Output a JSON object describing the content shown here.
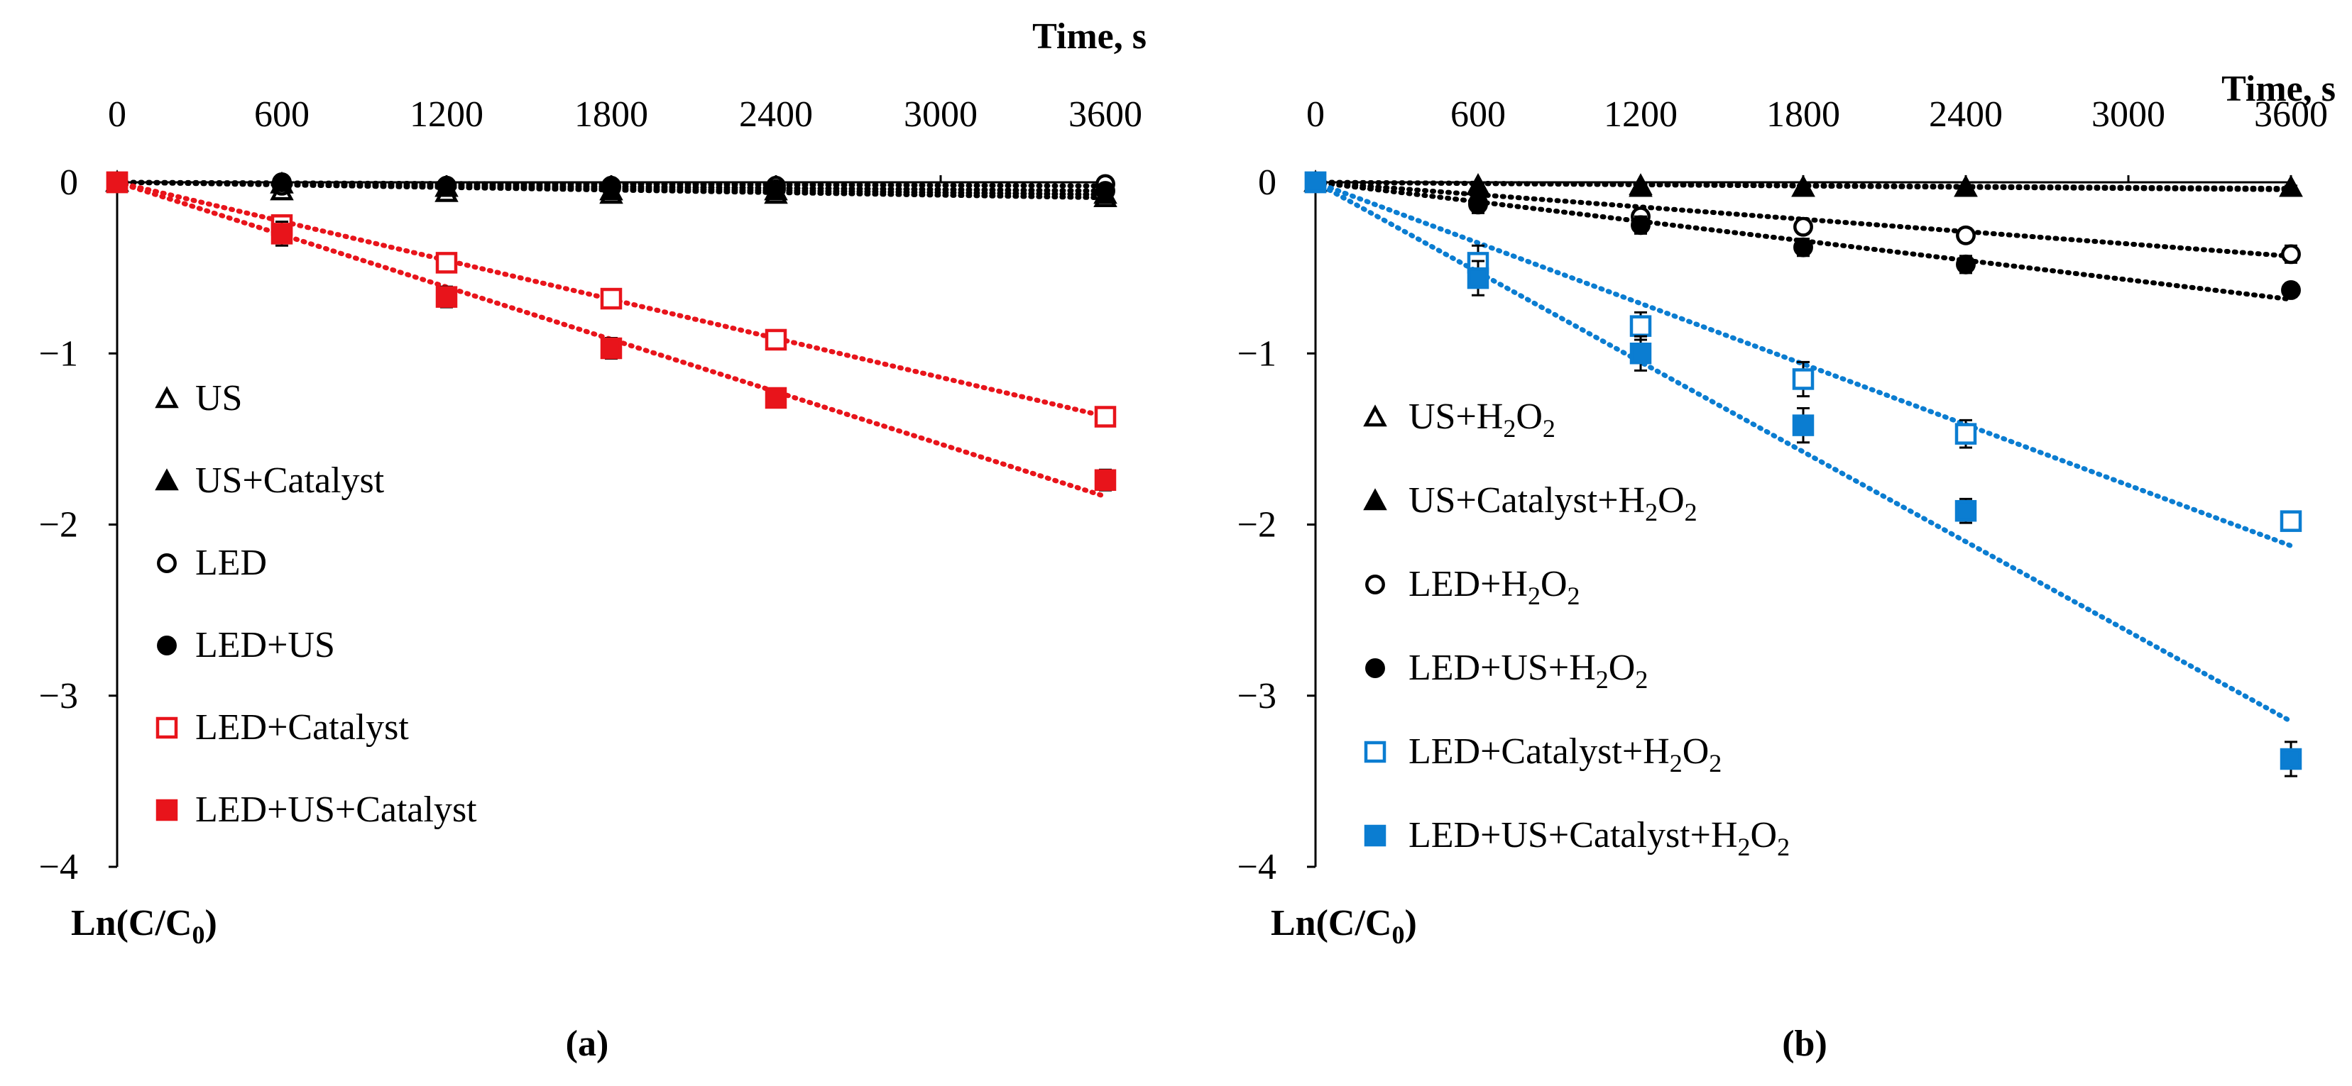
{
  "figure": {
    "panels": [
      "(a)",
      "(b)"
    ]
  },
  "chart_data": [
    {
      "type": "scatter",
      "panel_label": "(a)",
      "x_axis_title": "Time, s",
      "y_axis_title": "Ln(C/C",
      "y_axis_title_sub": "0",
      "y_axis_title_end": ")",
      "xlim": [
        0,
        3600
      ],
      "ylim": [
        -4,
        0
      ],
      "x_ticks": [
        0,
        600,
        1200,
        1800,
        2400,
        3000,
        3600
      ],
      "x_tick_labels": [
        "0",
        "600",
        "1200",
        "1800",
        "2400",
        "3000",
        "3600"
      ],
      "y_ticks": [
        0,
        -1,
        -2,
        -3,
        -4
      ],
      "y_tick_labels": [
        "0",
        "−1",
        "−2",
        "−3",
        "−4"
      ],
      "x_axis_position": "top",
      "legend_position": "lower-left",
      "series": [
        {
          "name": "US",
          "label": [
            {
              "t": "US"
            }
          ],
          "marker": "triangle-open",
          "color": "#000000",
          "x": [
            0,
            600,
            1200,
            1800,
            2400,
            3600
          ],
          "y": [
            0,
            -0.05,
            -0.06,
            -0.07,
            -0.07,
            -0.09
          ],
          "err": [
            0.02,
            0.03,
            0.02,
            0.02,
            0.02,
            0.03
          ],
          "trend": [
            0,
            -2.5e-05
          ]
        },
        {
          "name": "US+Catalyst",
          "label": [
            {
              "t": "US+Catalyst"
            }
          ],
          "marker": "triangle-filled",
          "color": "#000000",
          "x": [
            0,
            600,
            1200,
            1800,
            2400,
            3600
          ],
          "y": [
            0,
            -0.01,
            -0.03,
            -0.05,
            -0.05,
            -0.07
          ],
          "err": [
            0.01,
            0.02,
            0.02,
            0.02,
            0.02,
            0.02
          ],
          "trend": [
            0,
            -2e-05
          ]
        },
        {
          "name": "LED",
          "label": [
            {
              "t": "LED"
            }
          ],
          "marker": "circle-open",
          "color": "#000000",
          "x": [
            0,
            600,
            1200,
            1800,
            2400,
            3600
          ],
          "y": [
            0,
            -0.02,
            -0.02,
            -0.02,
            -0.02,
            -0.01
          ],
          "err": [
            0.01,
            0.01,
            0.01,
            0.01,
            0.01,
            0.01
          ],
          "trend": [
            0,
            -6e-06
          ]
        },
        {
          "name": "LED+US",
          "label": [
            {
              "t": "LED+US"
            }
          ],
          "marker": "circle-filled",
          "color": "#000000",
          "x": [
            0,
            600,
            1200,
            1800,
            2400,
            3600
          ],
          "y": [
            0,
            0.0,
            -0.02,
            -0.03,
            -0.04,
            -0.05
          ],
          "err": [
            0.01,
            0.01,
            0.01,
            0.01,
            0.01,
            0.01
          ],
          "trend": [
            0,
            -1.4e-05
          ]
        },
        {
          "name": "LED+Catalyst",
          "label": [
            {
              "t": "LED+Catalyst"
            }
          ],
          "marker": "square-open",
          "color": "#e8141b",
          "x": [
            0,
            600,
            1200,
            1800,
            2400,
            3600
          ],
          "y": [
            0,
            -0.25,
            -0.47,
            -0.68,
            -0.92,
            -1.37
          ],
          "err": [
            0.02,
            0.05,
            0.04,
            0.04,
            0.04,
            0.05
          ],
          "trend": [
            0,
            -0.00038
          ]
        },
        {
          "name": "LED+US+Catalyst",
          "label": [
            {
              "t": "LED+US+Catalyst"
            }
          ],
          "marker": "square-filled",
          "color": "#e8141b",
          "x": [
            0,
            600,
            1200,
            1800,
            2400,
            3600
          ],
          "y": [
            0,
            -0.3,
            -0.67,
            -0.97,
            -1.26,
            -1.74
          ],
          "err": [
            0.02,
            0.07,
            0.06,
            0.06,
            0.05,
            0.06
          ],
          "trend": [
            0,
            -0.00051
          ]
        }
      ]
    },
    {
      "type": "scatter",
      "panel_label": "(b)",
      "x_axis_title": "Time, s",
      "y_axis_title": "Ln(C/C",
      "y_axis_title_sub": "0",
      "y_axis_title_end": ")",
      "xlim": [
        0,
        3600
      ],
      "ylim": [
        -4,
        0
      ],
      "x_ticks": [
        0,
        600,
        1200,
        1800,
        2400,
        3000,
        3600
      ],
      "x_tick_labels": [
        "0",
        "600",
        "1200",
        "1800",
        "2400",
        "3000",
        "3600"
      ],
      "y_ticks": [
        0,
        -1,
        -2,
        -3,
        -4
      ],
      "y_tick_labels": [
        "0",
        "−1",
        "−2",
        "−3",
        "−4"
      ],
      "x_axis_position": "top",
      "legend_position": "lower-left",
      "series": [
        {
          "name": "US+H2O2",
          "label": [
            {
              "t": "US+H"
            },
            {
              "t": "2",
              "sub": true
            },
            {
              "t": "O"
            },
            {
              "t": "2",
              "sub": true
            }
          ],
          "marker": "triangle-open",
          "color": "#000000",
          "x": [
            0,
            600,
            1200,
            1800,
            2400,
            3600
          ],
          "y": [
            0,
            -0.02,
            -0.02,
            -0.03,
            -0.03,
            -0.03
          ],
          "err": [
            0.01,
            0.01,
            0.01,
            0.01,
            0.01,
            0.01
          ],
          "trend": [
            0,
            -1e-05
          ]
        },
        {
          "name": "US+Catalyst+H2O2",
          "label": [
            {
              "t": "US+Catalyst+H"
            },
            {
              "t": "2",
              "sub": true
            },
            {
              "t": "O"
            },
            {
              "t": "2",
              "sub": true
            }
          ],
          "marker": "triangle-filled",
          "color": "#000000",
          "x": [
            0,
            600,
            1200,
            1800,
            2400,
            3600
          ],
          "y": [
            0,
            -0.02,
            -0.03,
            -0.03,
            -0.03,
            -0.03
          ],
          "err": [
            0.01,
            0.01,
            0.01,
            0.01,
            0.01,
            0.01
          ],
          "trend": [
            0,
            -1.2e-05
          ]
        },
        {
          "name": "LED+H2O2",
          "label": [
            {
              "t": "LED+H"
            },
            {
              "t": "2",
              "sub": true
            },
            {
              "t": "O"
            },
            {
              "t": "2",
              "sub": true
            }
          ],
          "marker": "circle-open",
          "color": "#000000",
          "x": [
            0,
            600,
            1200,
            1800,
            2400,
            3600
          ],
          "y": [
            0,
            -0.12,
            -0.2,
            -0.26,
            -0.31,
            -0.42
          ],
          "err": [
            0.02,
            0.04,
            0.04,
            0.04,
            0.04,
            0.05
          ],
          "trend": [
            0,
            -0.00012
          ]
        },
        {
          "name": "LED+US+H2O2",
          "label": [
            {
              "t": "LED+US+H"
            },
            {
              "t": "2",
              "sub": true
            },
            {
              "t": "O"
            },
            {
              "t": "2",
              "sub": true
            }
          ],
          "marker": "circle-filled",
          "color": "#000000",
          "x": [
            0,
            600,
            1200,
            1800,
            2400,
            3600
          ],
          "y": [
            0,
            -0.13,
            -0.25,
            -0.38,
            -0.48,
            -0.63
          ],
          "err": [
            0.02,
            0.05,
            0.05,
            0.05,
            0.05,
            0.04
          ],
          "trend": [
            0,
            -0.00019
          ]
        },
        {
          "name": "LED+Catalyst+H2O2",
          "label": [
            {
              "t": "LED+Catalyst+H"
            },
            {
              "t": "2",
              "sub": true
            },
            {
              "t": "O"
            },
            {
              "t": "2",
              "sub": true
            }
          ],
          "marker": "square-open",
          "color": "#0b7dd1",
          "x": [
            0,
            600,
            1200,
            1800,
            2400,
            3600
          ],
          "y": [
            0,
            -0.47,
            -0.84,
            -1.15,
            -1.47,
            -1.98
          ],
          "err": [
            0.02,
            0.1,
            0.08,
            0.1,
            0.08,
            0.05
          ],
          "trend": [
            0,
            -0.00059
          ]
        },
        {
          "name": "LED+US+Catalyst+H2O2",
          "label": [
            {
              "t": "LED+US+Catalyst+H"
            },
            {
              "t": "2",
              "sub": true
            },
            {
              "t": "O"
            },
            {
              "t": "2",
              "sub": true
            }
          ],
          "marker": "square-filled",
          "color": "#0b7dd1",
          "x": [
            0,
            600,
            1200,
            1800,
            2400,
            3600
          ],
          "y": [
            0,
            -0.56,
            -1.0,
            -1.42,
            -1.92,
            -3.37
          ],
          "err": [
            0.02,
            0.1,
            0.1,
            0.1,
            0.07,
            0.1
          ],
          "trend": [
            0,
            -0.000875
          ]
        }
      ]
    }
  ]
}
